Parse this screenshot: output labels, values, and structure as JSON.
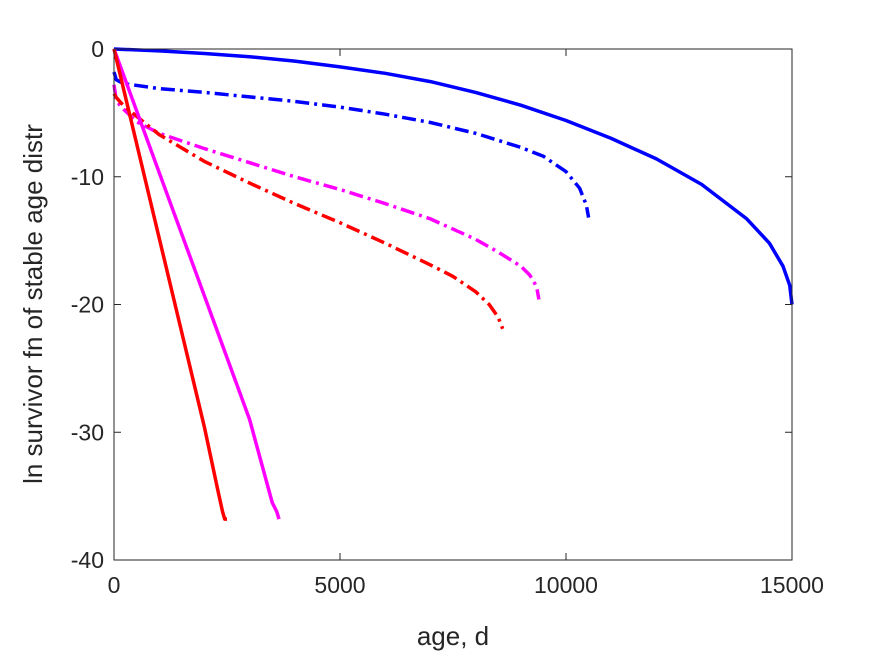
{
  "chart_data": {
    "type": "line",
    "title": "",
    "xlabel": "age, d",
    "ylabel": "ln survivor fn of stable age distr",
    "xlim": [
      0,
      15000
    ],
    "ylim": [
      -40,
      0
    ],
    "xticks": [
      0,
      5000,
      10000,
      15000
    ],
    "yticks": [
      0,
      -10,
      -20,
      -30,
      -40
    ],
    "grid": false,
    "legend": "none",
    "series": [
      {
        "color": "#0000ff",
        "dash": "solid",
        "x": [
          0,
          1000,
          2000,
          3000,
          4000,
          5000,
          6000,
          7000,
          8000,
          9000,
          10000,
          11000,
          12000,
          13000,
          14000,
          14500,
          14800,
          14950,
          15000
        ],
        "y": [
          0,
          -0.15,
          -0.35,
          -0.6,
          -0.95,
          -1.4,
          -1.9,
          -2.55,
          -3.4,
          -4.4,
          -5.6,
          -7.0,
          -8.6,
          -10.6,
          -13.3,
          -15.2,
          -17.0,
          -18.5,
          -20.0
        ]
      },
      {
        "color": "#0000ff",
        "dash": "dashdot",
        "x": [
          0,
          50,
          200,
          1000,
          2000,
          3000,
          4000,
          5000,
          6000,
          7000,
          8000,
          9000,
          9500,
          10000,
          10300,
          10450,
          10500
        ],
        "y": [
          -1.8,
          -2.4,
          -2.7,
          -3.1,
          -3.4,
          -3.75,
          -4.1,
          -4.55,
          -5.1,
          -5.75,
          -6.6,
          -7.7,
          -8.4,
          -9.6,
          -10.9,
          -12.2,
          -13.2
        ]
      },
      {
        "color": "#ff00ff",
        "dash": "dashdot",
        "x": [
          0,
          50,
          150,
          500,
          1000,
          2000,
          3000,
          4000,
          5000,
          6000,
          7000,
          8000,
          8500,
          9000,
          9200,
          9350,
          9400
        ],
        "y": [
          -2.8,
          -4.0,
          -4.5,
          -5.7,
          -6.6,
          -7.8,
          -8.9,
          -10.0,
          -11.0,
          -12.1,
          -13.3,
          -14.9,
          -15.9,
          -17.0,
          -17.7,
          -18.6,
          -19.6
        ]
      },
      {
        "color": "#ff0000",
        "dash": "dashdot",
        "x": [
          0,
          50,
          150,
          300,
          1000,
          2000,
          3000,
          4000,
          5000,
          6000,
          7000,
          7500,
          8000,
          8300,
          8500,
          8600
        ],
        "y": [
          -3.5,
          -3.8,
          -4.2,
          -4.7,
          -6.7,
          -8.8,
          -10.5,
          -12.1,
          -13.6,
          -15.2,
          -16.9,
          -17.8,
          -19.0,
          -20.0,
          -21.0,
          -21.9
        ]
      },
      {
        "color": "#ff00ff",
        "dash": "solid",
        "x": [
          0,
          600,
          1200,
          1800,
          2400,
          3000,
          3500,
          3600,
          3650
        ],
        "y": [
          0,
          -5.8,
          -11.6,
          -17.4,
          -23.2,
          -29.0,
          -35.5,
          -36.2,
          -36.8
        ]
      },
      {
        "color": "#ff0000",
        "dash": "solid",
        "x": [
          0,
          500,
          1000,
          1500,
          2000,
          2300,
          2400,
          2450,
          2500
        ],
        "y": [
          0,
          -7.4,
          -14.8,
          -22.2,
          -29.6,
          -34.6,
          -36.2,
          -36.8,
          -36.8
        ]
      }
    ]
  }
}
